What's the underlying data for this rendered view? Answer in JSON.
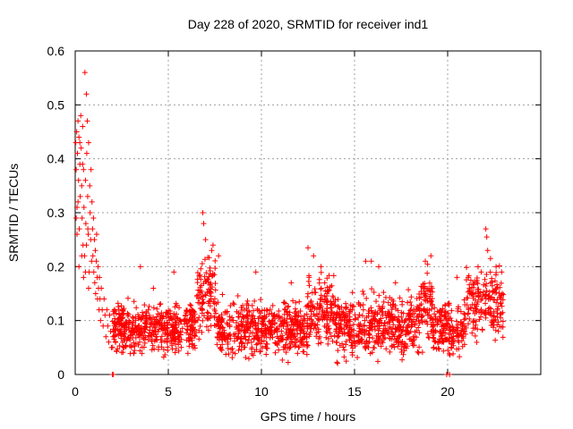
{
  "chart_data": {
    "type": "scatter",
    "title": "Day 228 of 2020, SRMTID for receiver ind1",
    "xlabel": "GPS time / hours",
    "ylabel": "SRMTID / TECUs",
    "xlim": [
      0,
      25
    ],
    "ylim": [
      0,
      0.6
    ],
    "xticks": [
      0,
      5,
      10,
      15,
      20
    ],
    "yticks": [
      0,
      0.1,
      0.2,
      0.3,
      0.4,
      0.5,
      0.6
    ],
    "grid": true,
    "marker": "+",
    "color": "#ff0000",
    "series": [
      {
        "name": "ind1",
        "points": [
          [
            0.03,
            0.43
          ],
          [
            0.05,
            0.38
          ],
          [
            0.08,
            0.45
          ],
          [
            0.1,
            0.31
          ],
          [
            0.12,
            0.41
          ],
          [
            0.15,
            0.47
          ],
          [
            0.18,
            0.36
          ],
          [
            0.2,
            0.44
          ],
          [
            0.22,
            0.27
          ],
          [
            0.25,
            0.39
          ],
          [
            0.27,
            0.33
          ],
          [
            0.3,
            0.48
          ],
          [
            0.32,
            0.42
          ],
          [
            0.35,
            0.35
          ],
          [
            0.37,
            0.29
          ],
          [
            0.4,
            0.46
          ],
          [
            0.42,
            0.24
          ],
          [
            0.45,
            0.38
          ],
          [
            0.47,
            0.31
          ],
          [
            0.5,
            0.22
          ],
          [
            0.52,
            0.56
          ],
          [
            0.55,
            0.36
          ],
          [
            0.57,
            0.28
          ],
          [
            0.6,
            0.52
          ],
          [
            0.62,
            0.41
          ],
          [
            0.65,
            0.47
          ],
          [
            0.67,
            0.33
          ],
          [
            0.7,
            0.26
          ],
          [
            0.72,
            0.43
          ],
          [
            0.75,
            0.19
          ],
          [
            0.78,
            0.35
          ],
          [
            0.8,
            0.3
          ],
          [
            0.83,
            0.25
          ],
          [
            0.85,
            0.38
          ],
          [
            0.88,
            0.21
          ],
          [
            0.9,
            0.32
          ],
          [
            0.93,
            0.27
          ],
          [
            0.95,
            0.22
          ],
          [
            0.98,
            0.29
          ],
          [
            1.0,
            0.19
          ],
          [
            1.03,
            0.25
          ],
          [
            1.05,
            0.17
          ],
          [
            1.08,
            0.23
          ],
          [
            1.1,
            0.15
          ],
          [
            1.13,
            0.21
          ],
          [
            1.15,
            0.26
          ],
          [
            1.18,
            0.18
          ],
          [
            1.2,
            0.14
          ],
          [
            1.23,
            0.2
          ],
          [
            1.25,
            0.16
          ],
          [
            1.28,
            0.12
          ],
          [
            1.3,
            0.18
          ],
          [
            1.33,
            0.14
          ],
          [
            1.36,
            0.1
          ],
          [
            1.4,
            0.16
          ],
          [
            1.45,
            0.12
          ],
          [
            1.5,
            0.09
          ],
          [
            1.55,
            0.14
          ],
          [
            1.6,
            0.11
          ],
          [
            1.65,
            0.07
          ],
          [
            1.7,
            0.12
          ],
          [
            1.75,
            0.09
          ],
          [
            1.8,
            0.06
          ],
          [
            1.85,
            0.11
          ],
          [
            1.9,
            0.08
          ],
          [
            1.95,
            0.05
          ],
          [
            2.0,
            0.0
          ],
          [
            0.2,
            0.2
          ],
          [
            0.35,
            0.22
          ],
          [
            0.55,
            0.19
          ],
          [
            0.45,
            0.18
          ],
          [
            0.6,
            0.24
          ],
          [
            0.15,
            0.32
          ],
          [
            0.25,
            0.43
          ],
          [
            0.4,
            0.39
          ],
          [
            0.1,
            0.26
          ],
          [
            0.05,
            0.29
          ],
          [
            0.68,
            0.27
          ],
          [
            0.72,
            0.16
          ]
        ],
        "noise": {
          "x_range": [
            2.0,
            23.0
          ],
          "segments": [
            {
              "x": [
                2.0,
                6.5
              ],
              "center": 0.085,
              "spread": 0.045
            },
            {
              "x": [
                6.5,
                7.6
              ],
              "center": 0.15,
              "spread": 0.075
            },
            {
              "x": [
                7.6,
                12.5
              ],
              "center": 0.085,
              "spread": 0.05
            },
            {
              "x": [
                12.5,
                14.0
              ],
              "center": 0.12,
              "spread": 0.06
            },
            {
              "x": [
                14.0,
                18.5
              ],
              "center": 0.09,
              "spread": 0.055
            },
            {
              "x": [
                18.5,
                19.2
              ],
              "center": 0.12,
              "spread": 0.07
            },
            {
              "x": [
                19.2,
                21.0
              ],
              "center": 0.085,
              "spread": 0.05
            },
            {
              "x": [
                21.0,
                23.0
              ],
              "center": 0.13,
              "spread": 0.065
            }
          ],
          "count": 2200
        },
        "peaks": [
          [
            2.05,
            0.0
          ],
          [
            3.5,
            0.2
          ],
          [
            4.2,
            0.16
          ],
          [
            6.85,
            0.3
          ],
          [
            6.9,
            0.28
          ],
          [
            7.0,
            0.25
          ],
          [
            7.4,
            0.24
          ],
          [
            7.7,
            0.22
          ],
          [
            12.5,
            0.235
          ],
          [
            12.8,
            0.22
          ],
          [
            13.2,
            0.2
          ],
          [
            13.4,
            0.17
          ],
          [
            15.6,
            0.21
          ],
          [
            15.9,
            0.21
          ],
          [
            16.3,
            0.2
          ],
          [
            17.2,
            0.17
          ],
          [
            18.8,
            0.21
          ],
          [
            19.1,
            0.22
          ],
          [
            19.95,
            0.0
          ],
          [
            20.1,
            0.0
          ],
          [
            22.05,
            0.27
          ],
          [
            22.1,
            0.255
          ],
          [
            22.15,
            0.23
          ],
          [
            22.3,
            0.215
          ],
          [
            22.6,
            0.2
          ],
          [
            22.9,
            0.19
          ],
          [
            21.1,
            0.18
          ],
          [
            21.8,
            0.19
          ],
          [
            20.5,
            0.18
          ],
          [
            11.6,
            0.17
          ],
          [
            9.7,
            0.19
          ],
          [
            5.3,
            0.19
          ]
        ]
      }
    ]
  }
}
